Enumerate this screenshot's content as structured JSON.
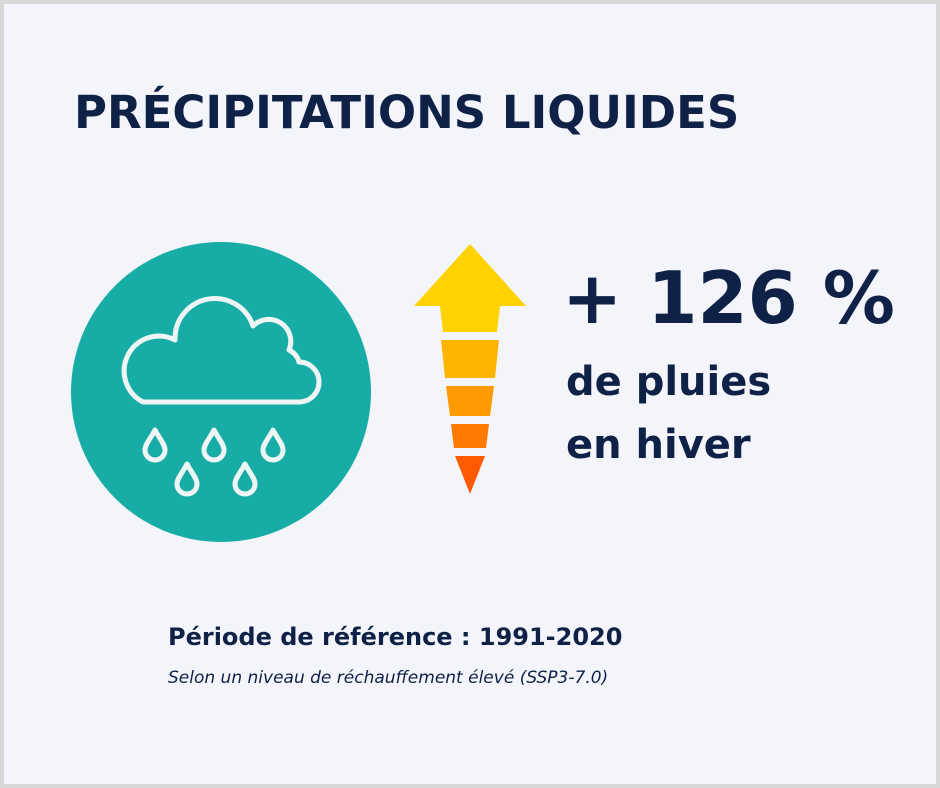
{
  "title": "PRÉCIPITATIONS LIQUIDES",
  "icon": {
    "name": "rain-cloud-icon",
    "bg_color": "#17aca5"
  },
  "indicator": {
    "name": "up-arrow-icon",
    "colors": [
      "#ffd200",
      "#ffb400",
      "#ff9a00",
      "#ff7a00",
      "#ff5a00"
    ]
  },
  "value": "+ 126 %",
  "description": {
    "line1": "de pluies",
    "line2": "en hiver"
  },
  "reference_period": "Période de référence : 1991-2020",
  "scenario_note": "Selon un niveau de réchauffement élevé (SSP3-7.0)",
  "colors": {
    "text": "#0f2146",
    "background": "#f3f5fa"
  }
}
